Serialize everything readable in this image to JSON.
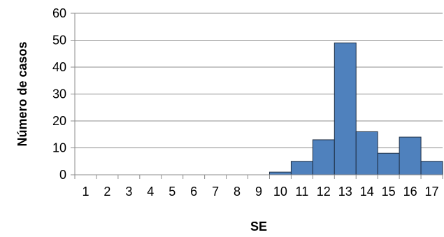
{
  "chart_data": {
    "type": "bar",
    "title": "",
    "xlabel": "SE",
    "ylabel": "Número de casos",
    "categories": [
      "1",
      "2",
      "3",
      "4",
      "5",
      "6",
      "7",
      "8",
      "9",
      "10",
      "11",
      "12",
      "13",
      "14",
      "15",
      "16",
      "17"
    ],
    "values": [
      0,
      0,
      0,
      0,
      0,
      0,
      0,
      0,
      0,
      1,
      5,
      13,
      49,
      16,
      8,
      14,
      5
    ],
    "ylim": [
      0,
      60
    ],
    "yticks": [
      0,
      10,
      20,
      30,
      40,
      50,
      60
    ],
    "grid": "horizontal",
    "legend": "none",
    "colors": {
      "bar": "#4f81bd",
      "bar_edge": "#1f2f44",
      "grid": "#8c8c8c"
    }
  }
}
